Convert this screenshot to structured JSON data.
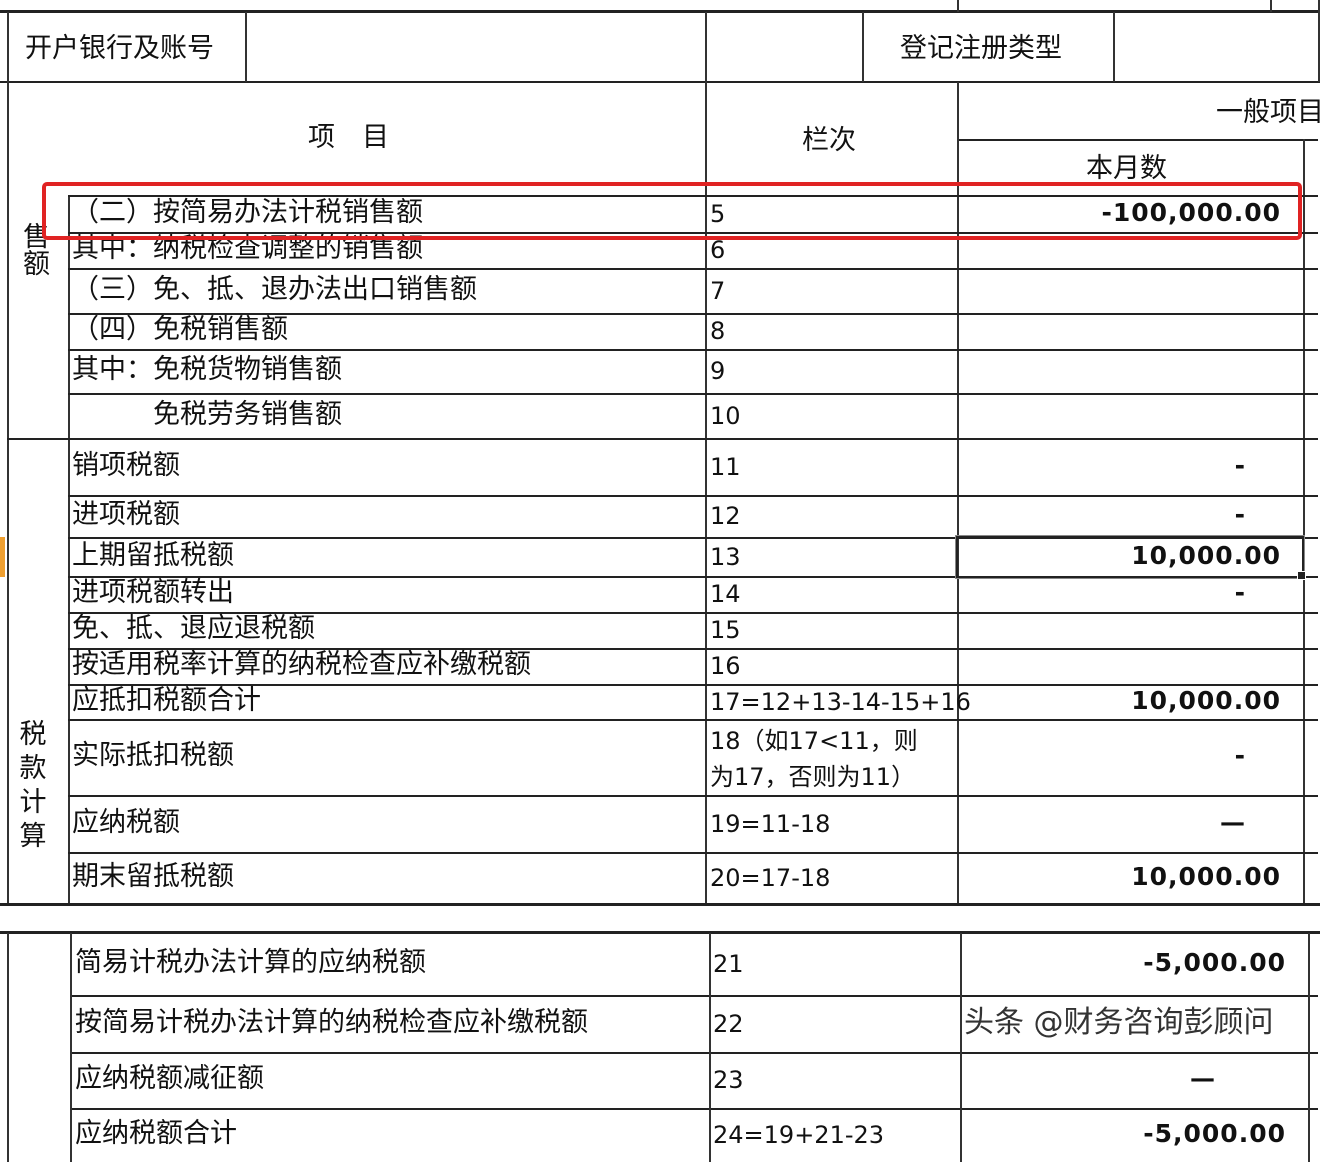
{
  "header": {
    "bank_label": "开户银行及账号",
    "reg_type_label": "登记注册类型",
    "item_label": "项　目",
    "col_label": "栏次",
    "general_label": "一般项目",
    "month_label": "本月数"
  },
  "sections": {
    "sales": "售额",
    "tax_calc": [
      "税",
      "款",
      "计",
      "算"
    ]
  },
  "rows": [
    {
      "item": "（二）按简易办法计税销售额",
      "col": "5",
      "value": "-100,000.00",
      "highlighted": true
    },
    {
      "item": "其中：纳税检查调整的销售额",
      "col": "6",
      "value": ""
    },
    {
      "item": "（三）免、抵、退办法出口销售额",
      "col": "7",
      "value": ""
    },
    {
      "item": "（四）免税销售额",
      "col": "8",
      "value": ""
    },
    {
      "item": "其中：免税货物销售额",
      "col": "9",
      "value": ""
    },
    {
      "item": "　　　免税劳务销售额",
      "col": "10",
      "value": ""
    },
    {
      "item": "销项税额",
      "col": "11",
      "value": "-"
    },
    {
      "item": "进项税额",
      "col": "12",
      "value": "-"
    },
    {
      "item": "上期留抵税额",
      "col": "13",
      "value": "10,000.00",
      "selected": true
    },
    {
      "item": "进项税额转出",
      "col": "14",
      "value": "-"
    },
    {
      "item": "免、抵、退应退税额",
      "col": "15",
      "value": ""
    },
    {
      "item": "按适用税率计算的纳税检查应补缴税额",
      "col": "16",
      "value": ""
    },
    {
      "item": "应抵扣税额合计",
      "col": "17=12+13-14-15+16",
      "value": "10,000.00"
    },
    {
      "item": "实际抵扣税额",
      "col": "18（如17<11，则\n为17，否则为11）",
      "value": "-"
    },
    {
      "item": "应纳税额",
      "col": "19=11-18",
      "value": "—"
    },
    {
      "item": "期末留抵税额",
      "col": "20=17-18",
      "value": "10,000.00"
    },
    {
      "item": "简易计税办法计算的应纳税额",
      "col": "21",
      "value": "-5,000.00"
    },
    {
      "item": "按简易计税办法计算的纳税检查应补缴税额",
      "col": "22",
      "value": ""
    },
    {
      "item": "应纳税额减征额",
      "col": "23",
      "value": "—"
    },
    {
      "item": "应纳税额合计",
      "col": "24=19+21-23",
      "value": "-5,000.00"
    }
  ],
  "watermark": "头条 @财务咨询彭顾问",
  "colors": {
    "highlight_box": "#e02323",
    "grid": "#222222"
  }
}
